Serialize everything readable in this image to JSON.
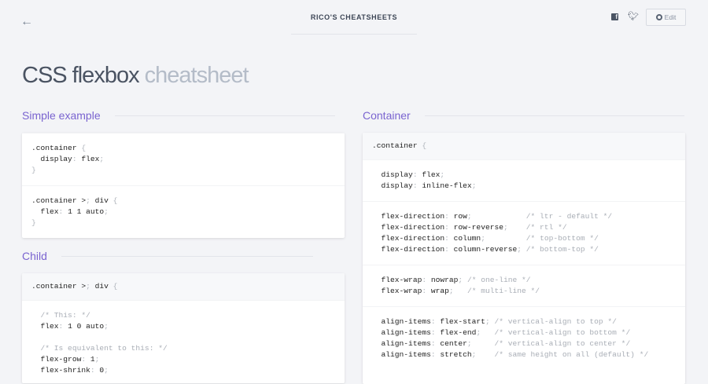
{
  "header": {
    "title": "RICO'S CHEATSHEETS",
    "edit_label": "Edit",
    "back_icon": "arrow-left-icon",
    "social": [
      "facebook-icon",
      "twitter-icon"
    ],
    "github_icon": "github-icon"
  },
  "page": {
    "title_main": "CSS flexbox",
    "title_light": "cheatsheet"
  },
  "sections": {
    "simple": {
      "heading": "Simple example",
      "blocks": [
        {
          "head": false,
          "lines": [
            ".container {",
            "  display: flex;",
            "}"
          ]
        },
        {
          "head": false,
          "lines": [
            ".container > div {",
            "  flex: 1 1 auto;",
            "}"
          ]
        }
      ]
    },
    "child": {
      "heading": "Child",
      "blocks": [
        {
          "head": true,
          "lines": [
            ".container > div {"
          ]
        },
        {
          "head": false,
          "lines": [
            "  /* This: */",
            "  flex: 1 0 auto;",
            "",
            "  /* Is equivalent to this: */",
            "  flex-grow: 1;",
            "  flex-shrink: 0;"
          ]
        }
      ]
    },
    "container": {
      "heading": "Container",
      "blocks": [
        {
          "head": true,
          "lines": [
            ".container {"
          ]
        },
        {
          "head": false,
          "lines": [
            "  display: flex;",
            "  display: inline-flex;"
          ]
        },
        {
          "head": false,
          "lines": [
            "  flex-direction: row;            /* ltr - default */",
            "  flex-direction: row-reverse;    /* rtl */",
            "  flex-direction: column;         /* top-bottom */",
            "  flex-direction: column-reverse; /* bottom-top */"
          ]
        },
        {
          "head": false,
          "lines": [
            "  flex-wrap: nowrap; /* one-line */",
            "  flex-wrap: wrap;   /* multi-line */"
          ]
        },
        {
          "head": false,
          "lines": [
            "  align-items: flex-start; /* vertical-align to top */",
            "  align-items: flex-end;   /* vertical-align to bottom */",
            "  align-items: center;     /* vertical-align to center */",
            "  align-items: stretch;    /* same height on all (default) */"
          ]
        }
      ]
    }
  }
}
